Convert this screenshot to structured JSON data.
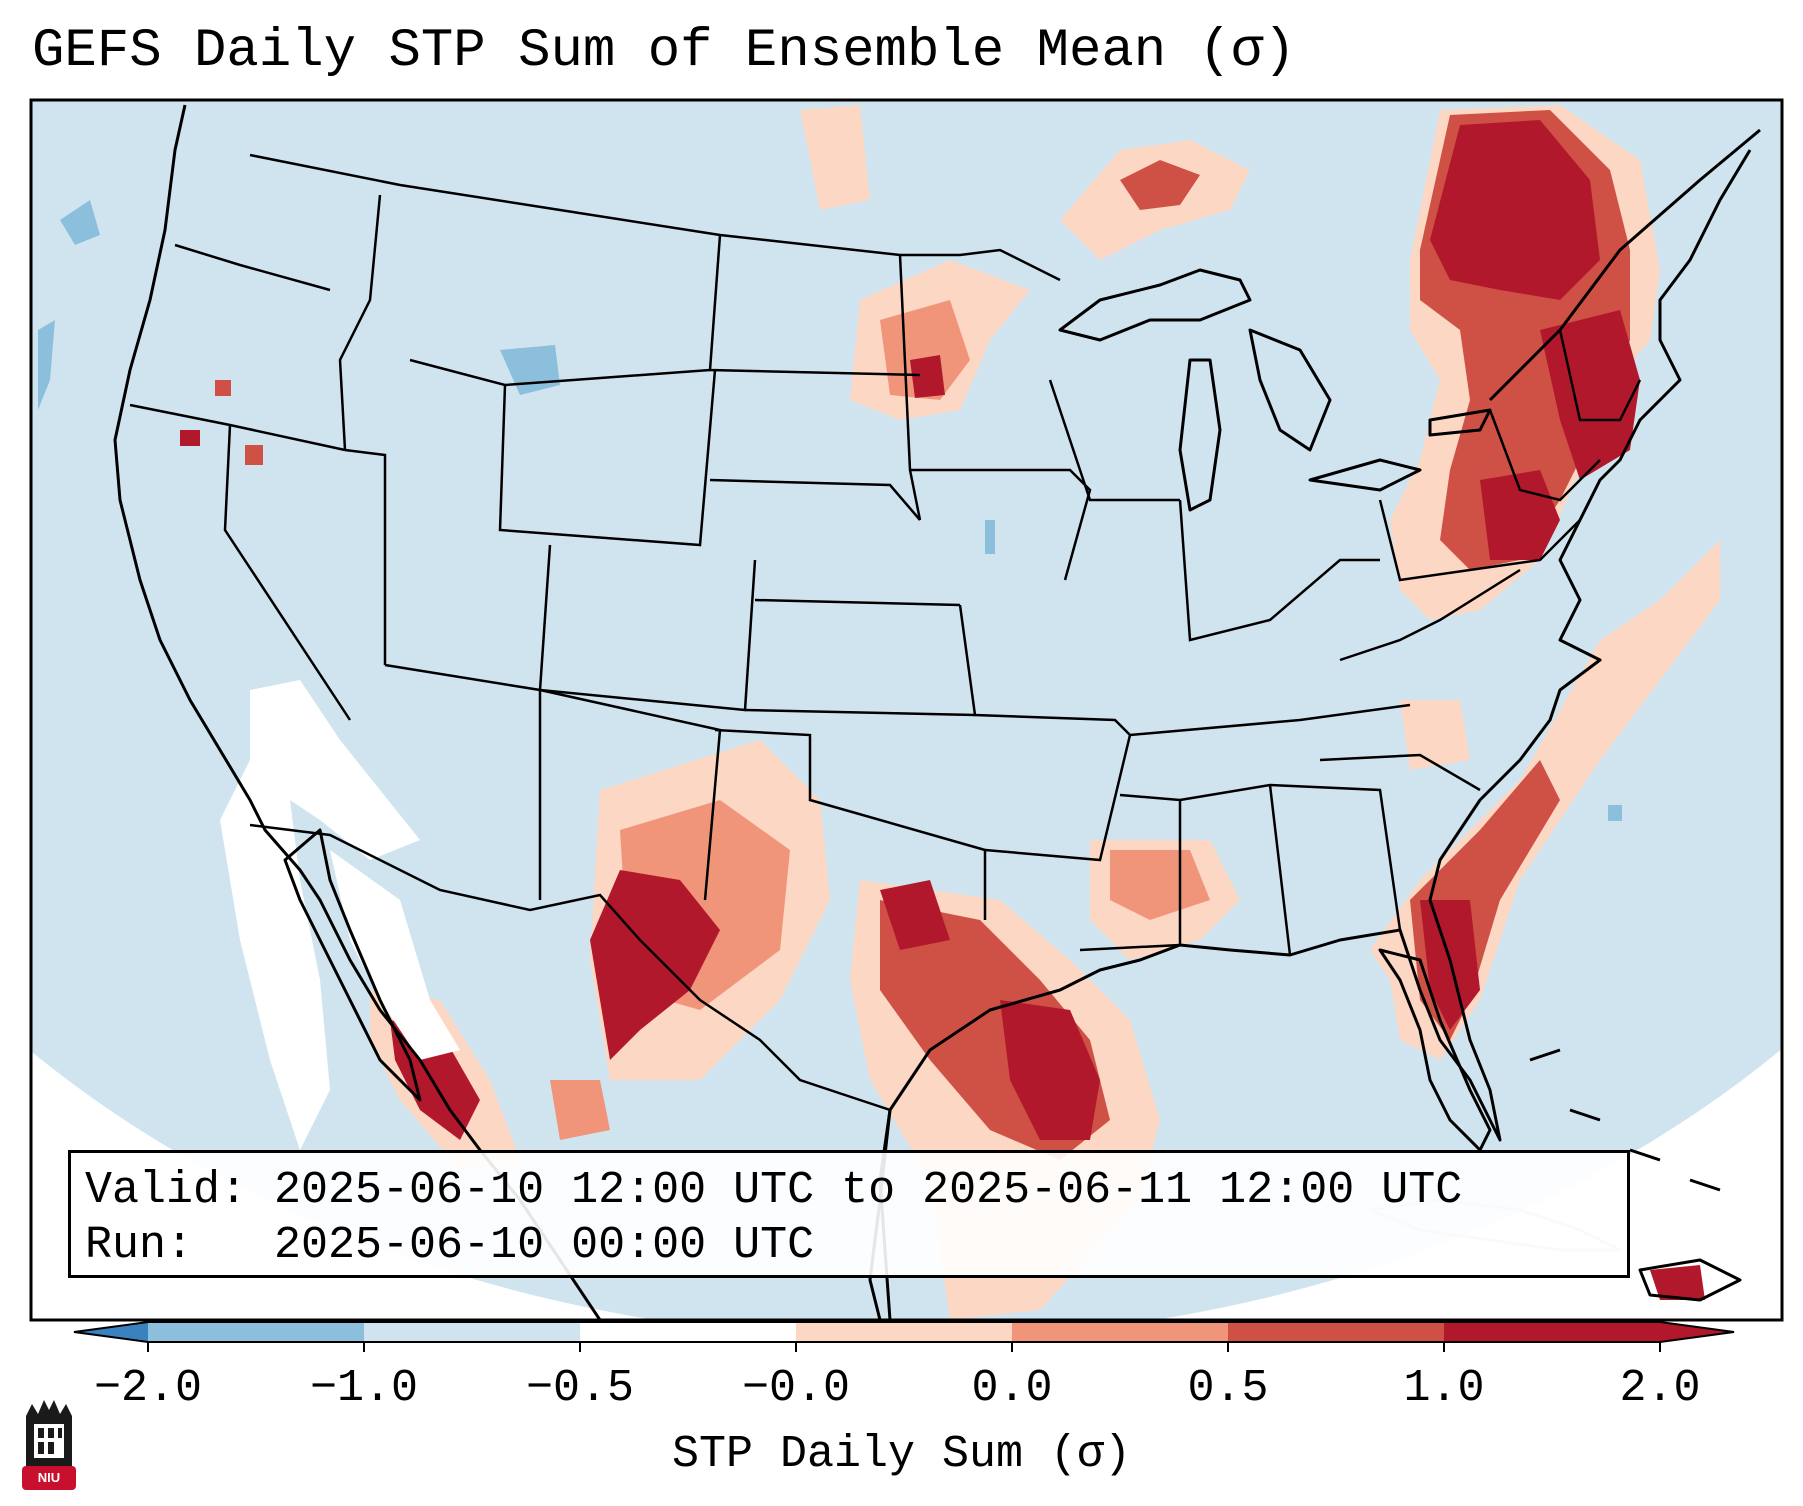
{
  "title": "GEFS Daily STP Sum of Ensemble Mean (σ)",
  "info": {
    "valid_line": "Valid: 2025-06-10 12:00 UTC to 2025-06-11 12:00 UTC",
    "run_line": "Run:   2025-06-10 00:00 UTC"
  },
  "colorbar": {
    "label": "STP Daily Sum (σ)",
    "ticks": [
      "−2.0",
      "−1.0",
      "−0.5",
      "−0.0",
      "0.0",
      "0.5",
      "1.0",
      "2.0"
    ],
    "colors": [
      "#3a82bf",
      "#8bbfdb",
      "#d0e4ef",
      "#ffffff",
      "#fbd7c4",
      "#f0957a",
      "#cf5146",
      "#b2182b"
    ],
    "extend": "both"
  },
  "logo": {
    "text": "NIU"
  },
  "map": {
    "projection": "Lambert conformal, CONUS",
    "background_color": "#d0e4ef",
    "high_areas": [
      "Northeast / New England",
      "Mid-Atlantic",
      "Southeast Texas / Louisiana coast",
      "West Texas / Big Bend",
      "Florida peninsula",
      "SE Minnesota",
      "Northern Mexico coast"
    ],
    "low_areas": [
      "Baja California / Gulf of California (near-neutral white)"
    ]
  }
}
